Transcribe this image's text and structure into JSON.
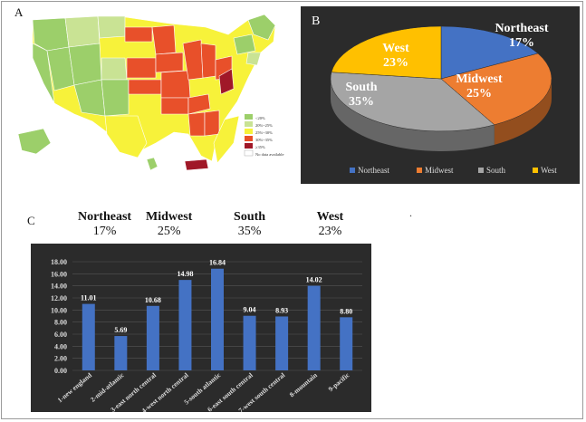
{
  "panels": {
    "a": "A",
    "b": "B",
    "c": "C"
  },
  "map": {
    "legend": [
      "<20%",
      "20%~25%",
      "25%~30%",
      "30%~35%",
      "≥35%",
      "No data available"
    ],
    "legend_colors": [
      "#9ccf6a",
      "#c9e394",
      "#f7f23a",
      "#e8502a",
      "#a01828",
      "#ffffff"
    ]
  },
  "chart_data": [
    {
      "type": "pie",
      "categories": [
        "Northeast",
        "Midwest",
        "South",
        "West"
      ],
      "values": [
        17,
        25,
        35,
        23
      ],
      "slice_labels": [
        "17%",
        "25%",
        "35%",
        "23%"
      ],
      "colors": [
        "#4472c4",
        "#ed7d31",
        "#a5a5a5",
        "#ffc000"
      ],
      "legend": "bottom",
      "background": "#2b2b2b"
    },
    {
      "type": "bar",
      "categories": [
        "1-new england",
        "2-mid-atlantic",
        "3-east north central",
        "4-west north central",
        "5-south atlantic",
        "6-east south central",
        "7-west south central",
        "8-mountain",
        "9-pacific"
      ],
      "values": [
        11.01,
        5.69,
        10.68,
        14.98,
        16.84,
        9.04,
        8.93,
        14.02,
        8.8
      ],
      "value_labels": [
        "11.01",
        "5.69",
        "10.68",
        "14.98",
        "16.84",
        "9.04",
        "8.93",
        "14.02",
        "8.80"
      ],
      "ylim": [
        0,
        18
      ],
      "yticks": [
        "0.00",
        "2.00",
        "4.00",
        "6.00",
        "8.00",
        "10.00",
        "12.00",
        "14.00",
        "16.00",
        "18.00"
      ],
      "grid": true,
      "color": "#4472c4",
      "background": "#2b2b2b",
      "region_groups": [
        {
          "name": "Northeast",
          "pct": "17%",
          "from": 0,
          "to": 1
        },
        {
          "name": "Midwest",
          "pct": "25%",
          "from": 2,
          "to": 3
        },
        {
          "name": "South",
          "pct": "35%",
          "from": 4,
          "to": 6
        },
        {
          "name": "West",
          "pct": "23%",
          "from": 7,
          "to": 8
        }
      ]
    }
  ],
  "stray_mark": "."
}
